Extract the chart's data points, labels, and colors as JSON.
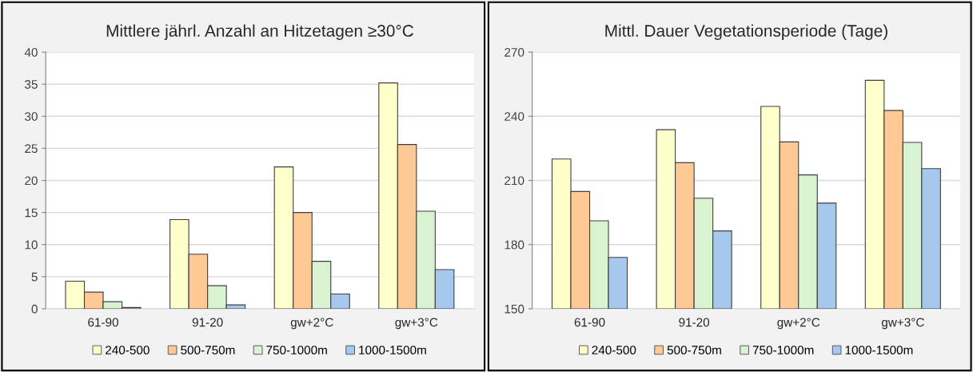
{
  "chart_data": [
    {
      "type": "bar",
      "title": "Mittlere jährl. Anzahl an Hitzetagen ≥30°C",
      "categories": [
        "61-90",
        "91-20",
        "gw+2°C",
        "gw+3°C"
      ],
      "series": [
        {
          "name": "240-500",
          "color": "#ffffcc",
          "values": [
            4.3,
            13.9,
            22.1,
            35.2
          ]
        },
        {
          "name": "500-750m",
          "color": "#ffc995",
          "values": [
            2.6,
            8.5,
            15.0,
            25.6
          ]
        },
        {
          "name": "750-1000m",
          "color": "#d9f2d0",
          "values": [
            1.1,
            3.6,
            7.4,
            15.2
          ]
        },
        {
          "name": "1000-1500m",
          "color": "#a6c8ec",
          "values": [
            0.2,
            0.6,
            2.3,
            6.1
          ]
        }
      ],
      "ylim": [
        0,
        40
      ],
      "yticks": [
        0,
        5,
        10,
        15,
        20,
        25,
        30,
        35,
        40
      ],
      "grid": "y",
      "legend": "bottom"
    },
    {
      "type": "bar",
      "title": "Mittl. Dauer Vegetationsperiode (Tage)",
      "categories": [
        "61-90",
        "91-20",
        "gw+2°C",
        "gw+3°C"
      ],
      "series": [
        {
          "name": "240-500",
          "color": "#ffffcc",
          "values": [
            220,
            233.7,
            244.6,
            256.8
          ]
        },
        {
          "name": "500-750m",
          "color": "#ffc995",
          "values": [
            204.8,
            218.3,
            228,
            242.7
          ]
        },
        {
          "name": "750-1000m",
          "color": "#d9f2d0",
          "values": [
            191.1,
            201.7,
            212.6,
            227.8
          ]
        },
        {
          "name": "1000-1500m",
          "color": "#a6c8ec",
          "values": [
            174,
            186.4,
            199.4,
            215.5
          ]
        }
      ],
      "ylim": [
        150,
        270
      ],
      "yticks": [
        150,
        180,
        210,
        240,
        270
      ],
      "grid": "y",
      "legend": "bottom"
    }
  ]
}
